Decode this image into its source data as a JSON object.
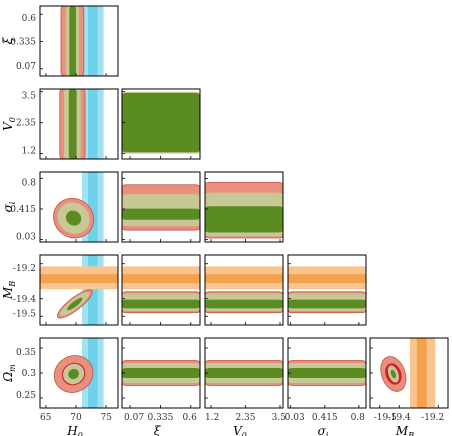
{
  "chart_data": {
    "type": "corner",
    "parameters": [
      {
        "key": "H0",
        "label": "H",
        "sub": "0",
        "range": [
          64,
          77
        ],
        "ticks": [
          65,
          70,
          75
        ],
        "tick_labels": [
          "65",
          "70",
          "75"
        ]
      },
      {
        "key": "xi",
        "label": "ξ",
        "sub": "",
        "range": [
          0.0,
          0.68
        ],
        "ticks": [
          0.07,
          0.335,
          0.6
        ],
        "tick_labels": [
          "0.07",
          "0.335",
          "0.6"
        ]
      },
      {
        "key": "V0",
        "label": "V",
        "sub": "0",
        "range": [
          1.0,
          3.6
        ],
        "ticks": [
          1.2,
          2.35,
          3.5
        ],
        "tick_labels": [
          "1.2",
          "2.35",
          "3.5"
        ]
      },
      {
        "key": "sigma_i",
        "label": "σ",
        "sub": "i",
        "range": [
          0.0,
          0.88
        ],
        "ticks": [
          0.03,
          0.415,
          0.8
        ],
        "tick_labels": [
          "0.03",
          "0.415",
          "0.8"
        ]
      },
      {
        "key": "M_B",
        "label": "M",
        "sub": "B",
        "range": [
          -19.55,
          -19.15
        ],
        "ticks": [
          -19.5,
          -19.4,
          -19.2
        ],
        "tick_labels": [
          "-19.5",
          "-19.4",
          "-19.2"
        ]
      },
      {
        "key": "Omega_m",
        "label": "Ω",
        "sub": "m",
        "range": [
          0.23,
          0.37
        ],
        "ticks": [
          0.25,
          0.3,
          0.35
        ],
        "tick_labels": [
          "0.25",
          "0.3",
          "0.35"
        ]
      }
    ],
    "external_priors": [
      {
        "parameter": "H0",
        "color": "#9fe2f2",
        "inner_color": "#6fd1ea",
        "outer": [
          71.0,
          74.6
        ],
        "inner": [
          72.0,
          73.6
        ]
      },
      {
        "parameter": "M_B",
        "color": "#f9c58f",
        "inner_color": "#f5a04a",
        "outer": [
          -19.345,
          -19.215
        ],
        "inner": [
          -19.31,
          -19.26
        ]
      }
    ],
    "contour_colors": {
      "outer": "#e8907c",
      "inner": "#d0202c",
      "overlay_outer": "#c8c896",
      "overlay_inner": "#5a8c22"
    },
    "contours": [
      {
        "x": "H0",
        "y": "xi",
        "type": "band_vertical",
        "outer": [
          67.5,
          71.3
        ],
        "inner": [
          68.6,
          70.3
        ],
        "overlay_outer": [
          68.3,
          70.5
        ],
        "overlay_inner": [
          68.9,
          70.0
        ]
      },
      {
        "x": "H0",
        "y": "V0",
        "type": "band_vertical",
        "outer": [
          67.3,
          71.5
        ],
        "inner": [
          68.4,
          70.5
        ],
        "overlay_outer": [
          68.0,
          70.8
        ],
        "overlay_inner": [
          68.8,
          70.1
        ]
      },
      {
        "x": "H0",
        "y": "sigma_i",
        "type": "ellipse",
        "center": [
          69.6,
          0.3
        ],
        "outer_radii": [
          3.2,
          0.26
        ],
        "inner_radii": [
          1.8,
          0.15
        ],
        "overlay_outer_radii": [
          2.5,
          0.21
        ],
        "overlay_inner_radii": [
          1.2,
          0.1
        ],
        "angle": -52
      },
      {
        "x": "H0",
        "y": "M_B",
        "type": "ellipse",
        "center": [
          69.8,
          -19.43
        ],
        "outer_radii": [
          3.6,
          0.035
        ],
        "inner_radii": [
          2.4,
          0.022
        ],
        "overlay_outer_radii": [
          3.0,
          0.028
        ],
        "overlay_inner_radii": [
          1.6,
          0.015
        ],
        "angle": -38
      },
      {
        "x": "H0",
        "y": "Omega_m",
        "type": "ellipse",
        "center": [
          69.6,
          0.298
        ],
        "outer_radii": [
          3.3,
          0.036
        ],
        "inner_radii": [
          2.0,
          0.022
        ],
        "overlay_outer_radii": [
          1.8,
          0.02
        ],
        "overlay_inner_radii": [
          0.9,
          0.01
        ],
        "angle": -30
      },
      {
        "x": "xi",
        "y": "V0",
        "type": "band_horizontal",
        "outer": [
          1.5,
          2.6
        ],
        "inner": [
          1.9,
          2.3
        ],
        "overlay_outer": [
          1.2,
          3.5
        ],
        "overlay_inner": [
          1.25,
          3.45
        ]
      },
      {
        "x": "xi",
        "y": "sigma_i",
        "type": "band_horizontal",
        "outer": [
          0.15,
          0.72
        ],
        "inner": [
          0.38,
          0.5
        ],
        "overlay_outer": [
          0.2,
          0.6
        ],
        "overlay_inner": [
          0.28,
          0.42
        ]
      },
      {
        "x": "xi",
        "y": "M_B",
        "type": "band_horizontal",
        "outer": [
          -19.48,
          -19.36
        ],
        "inner": [
          -19.45,
          -19.39
        ],
        "overlay_outer": [
          -19.47,
          -19.37
        ],
        "overlay_inner": [
          -19.455,
          -19.405
        ]
      },
      {
        "x": "xi",
        "y": "Omega_m",
        "type": "band_horizontal",
        "outer": [
          0.275,
          0.325
        ],
        "inner": [
          0.285,
          0.315
        ],
        "overlay_outer": [
          0.28,
          0.32
        ],
        "overlay_inner": [
          0.29,
          0.31
        ]
      },
      {
        "x": "V0",
        "y": "sigma_i",
        "type": "band_horizontal",
        "outer": [
          0.05,
          0.75
        ],
        "inner": [
          0.15,
          0.55
        ],
        "overlay_outer": [
          0.07,
          0.62
        ],
        "overlay_inner": [
          0.12,
          0.45
        ]
      },
      {
        "x": "V0",
        "y": "M_B",
        "type": "band_horizontal",
        "outer": [
          -19.48,
          -19.36
        ],
        "inner": [
          -19.45,
          -19.39
        ],
        "overlay_outer": [
          -19.47,
          -19.37
        ],
        "overlay_inner": [
          -19.455,
          -19.405
        ]
      },
      {
        "x": "V0",
        "y": "Omega_m",
        "type": "band_horizontal",
        "outer": [
          0.275,
          0.325
        ],
        "inner": [
          0.285,
          0.315
        ],
        "overlay_outer": [
          0.28,
          0.32
        ],
        "overlay_inner": [
          0.29,
          0.31
        ]
      },
      {
        "x": "sigma_i",
        "y": "M_B",
        "type": "band_horizontal",
        "outer": [
          -19.48,
          -19.36
        ],
        "inner": [
          -19.45,
          -19.39
        ],
        "overlay_outer": [
          -19.47,
          -19.37
        ],
        "overlay_inner": [
          -19.455,
          -19.405
        ]
      },
      {
        "x": "sigma_i",
        "y": "Omega_m",
        "type": "band_horizontal",
        "outer": [
          0.275,
          0.325
        ],
        "inner": [
          0.285,
          0.315
        ],
        "overlay_outer": [
          0.28,
          0.32
        ],
        "overlay_inner": [
          0.29,
          0.31
        ]
      },
      {
        "x": "M_B",
        "y": "Omega_m",
        "type": "ellipse",
        "center": [
          -19.43,
          0.298
        ],
        "outer_radii": [
          0.06,
          0.036
        ],
        "inner_radii": [
          0.04,
          0.022
        ],
        "overlay_outer_radii": [
          0.025,
          0.018
        ],
        "overlay_inner_radii": [
          0.012,
          0.009
        ],
        "angle": -20
      }
    ]
  }
}
